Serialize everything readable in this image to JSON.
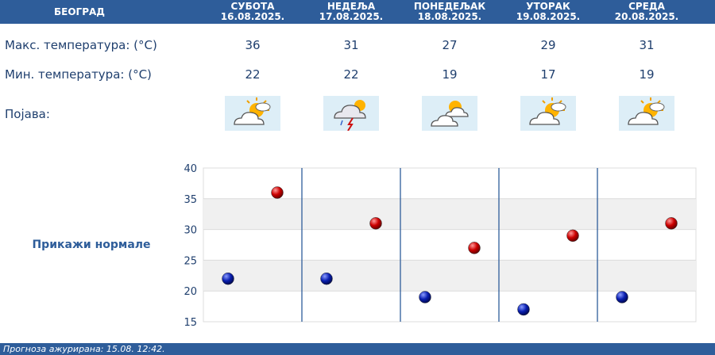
{
  "header": {
    "city": "БЕОГРАД",
    "days": [
      {
        "name": "СУБОТА",
        "date": "16.08.2025."
      },
      {
        "name": "НЕДЕЉА",
        "date": "17.08.2025."
      },
      {
        "name": "ПОНЕДЕЉАК",
        "date": "18.08.2025."
      },
      {
        "name": "УТОРАК",
        "date": "19.08.2025."
      },
      {
        "name": "СРЕДА",
        "date": "20.08.2025."
      }
    ]
  },
  "rows": {
    "max_label": "Макс. температура: (°C)",
    "min_label": "Мин. температура: (°C)",
    "phenomenon_label": "Појава:"
  },
  "max_temps": [
    "36",
    "31",
    "27",
    "29",
    "31"
  ],
  "min_temps": [
    "22",
    "22",
    "19",
    "17",
    "19"
  ],
  "icons": [
    "partly-cloudy-sun-icon",
    "thunderstorm-icon",
    "partly-cloudy-sun-icon",
    "partly-cloudy-sun-icon",
    "partly-cloudy-sun-icon"
  ],
  "show_normals": "Прикажи нормале",
  "footer": "Прогноза ажурирана:  15.08.  12:42.",
  "colors": {
    "header_bg": "#2e5d9a",
    "max_marker": "#cc0000",
    "min_marker": "#0a1fb0",
    "text": "#1f3f6e"
  },
  "chart_data": {
    "type": "scatter",
    "categories": [
      "16.08.2025.",
      "17.08.2025.",
      "18.08.2025.",
      "19.08.2025.",
      "20.08.2025."
    ],
    "series": [
      {
        "name": "",
        "values": [
          22,
          22,
          19,
          17,
          19
        ]
      },
      {
        "name": "",
        "values": [
          36,
          31,
          27,
          29,
          31
        ]
      }
    ],
    "ylim": [
      15,
      40
    ],
    "yticks": [
      "15",
      "20",
      "25",
      "30",
      "35",
      "40"
    ],
    "grid": true
  }
}
